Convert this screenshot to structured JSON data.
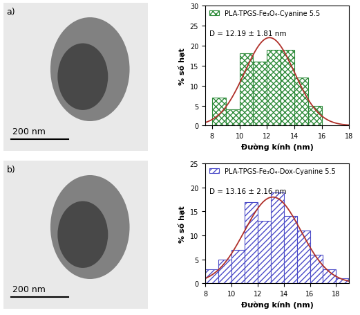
{
  "images": [
    {
      "label": "a)",
      "scale_bar": "200 nm"
    },
    {
      "label": "b)",
      "scale_bar": "200 nm"
    }
  ],
  "chart_data": [
    {
      "type": "histogram",
      "x_label": "Đường kính (nm)",
      "y_label": "% số hạt",
      "bins": [
        8,
        9,
        10,
        11,
        12,
        13,
        14,
        15,
        16
      ],
      "series": [
        {
          "name": "PLA-TPGS-Fe₃O₄-Cyanine 5.5",
          "color": "#2e8b3a",
          "values": [
            7,
            4,
            18,
            16,
            19,
            19,
            12,
            5
          ]
        }
      ],
      "annotations": [
        "D = 12.19 ± 1.81 nm"
      ],
      "fit": {
        "mean": 12.19,
        "sd": 1.81,
        "peak": 22,
        "color": "#b0302a"
      },
      "xlim": [
        7.5,
        18
      ],
      "xticks": [
        8,
        10,
        12,
        14,
        16,
        18
      ],
      "ylim": [
        0,
        30
      ],
      "yticks": [
        0,
        5,
        10,
        15,
        20,
        25,
        30
      ],
      "legend": "upper left"
    },
    {
      "type": "histogram",
      "x_label": "Đường kính (nm)",
      "y_label": "% số hạt",
      "bins": [
        8,
        9,
        10,
        11,
        12,
        13,
        14,
        15,
        16,
        17,
        18,
        19
      ],
      "series": [
        {
          "name": "PLA-TPGS-Fe₃O₄-Dox-Cyanine 5.5",
          "color": "#4b4bc8",
          "values": [
            3,
            5,
            7,
            17,
            13,
            19,
            14,
            11,
            6,
            3,
            1
          ]
        }
      ],
      "annotations": [
        "D = 13.16 ± 2.16 nm"
      ],
      "fit": {
        "mean": 13.16,
        "sd": 2.16,
        "peak": 18,
        "color": "#b0302a"
      },
      "xlim": [
        8,
        19
      ],
      "xticks": [
        8,
        10,
        12,
        14,
        16,
        18
      ],
      "ylim": [
        0,
        25
      ],
      "yticks": [
        0,
        5,
        10,
        15,
        20,
        25
      ],
      "legend": "upper left"
    }
  ]
}
